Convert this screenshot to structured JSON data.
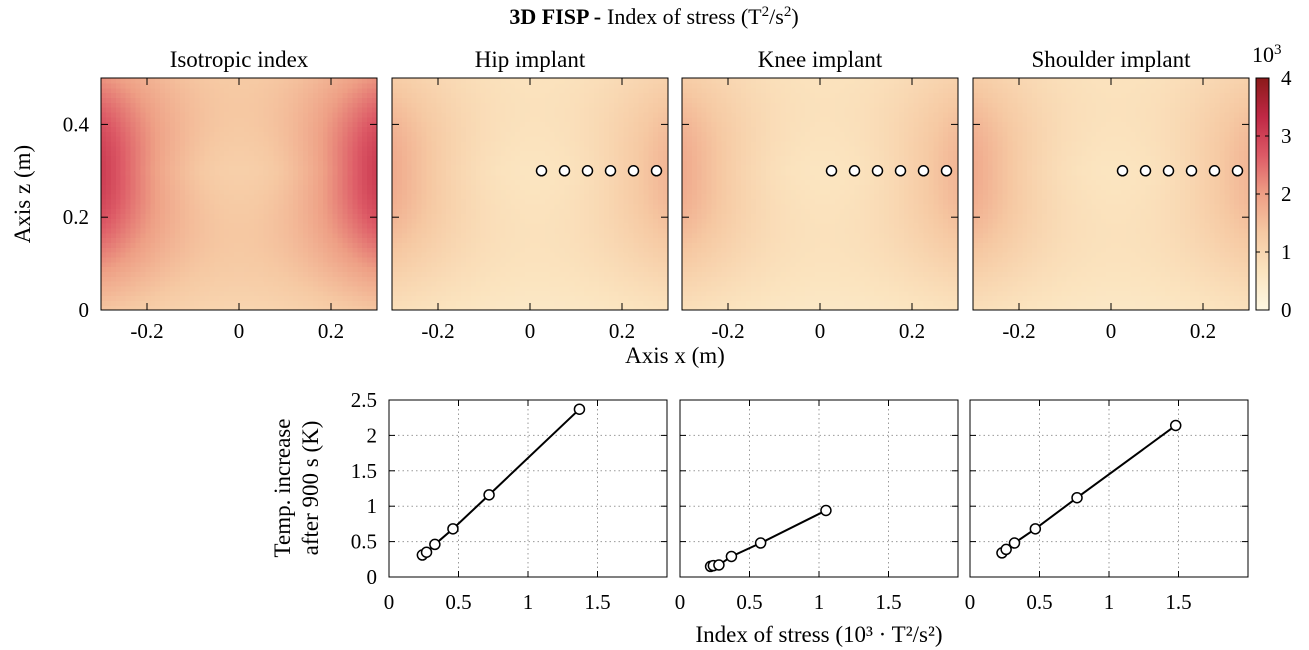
{
  "title": {
    "bold": "3D FISP -",
    "rest": "Index of stress (T",
    "sup1": "2",
    "mid": "/s",
    "sup2": "2",
    "end": ")"
  },
  "heatmap": {
    "panels": [
      {
        "title": "Isotropic index",
        "profile": "isotropic",
        "markers": false
      },
      {
        "title": "Hip implant",
        "profile": "implant",
        "markers": true
      },
      {
        "title": "Knee implant",
        "profile": "implant",
        "markers": true
      },
      {
        "title": "Shoulder implant",
        "profile": "implant",
        "markers": true
      }
    ],
    "xlim": [
      -0.3,
      0.3
    ],
    "ylim": [
      0,
      0.5
    ],
    "xticks": [
      -0.2,
      0,
      0.2
    ],
    "xtick_labels": [
      "-0.2",
      "0",
      "0.2"
    ],
    "yticks": [
      0,
      0.2,
      0.4
    ],
    "ytick_labels": [
      "0",
      "0.2",
      "0.4"
    ],
    "xlabel": "Axis x (m)",
    "ylabel": "Axis z (m)",
    "marker_x": [
      0.025,
      0.075,
      0.125,
      0.175,
      0.225,
      0.275
    ],
    "marker_z": 0.3,
    "colorbar": {
      "label_base": "10",
      "label_exp": "3",
      "ticks": [
        0,
        1,
        2,
        3,
        4
      ],
      "tick_labels": [
        "0",
        "1",
        "2",
        "3",
        "4"
      ],
      "range": [
        0,
        4
      ],
      "colors": [
        "#fdf7e3",
        "#fbe4bf",
        "#f6c9a3",
        "#ee9f85",
        "#dd5a66",
        "#c02845",
        "#8b1a1a"
      ]
    }
  },
  "chart_data": {
    "type": "line",
    "xlabel": "Index of stress (10³ · T²/s²)",
    "ylabel_line1": "Temp. increase",
    "ylabel_line2": "after 900 s (K)",
    "xlim": [
      0,
      2
    ],
    "ylim": [
      0,
      2.5
    ],
    "xticks": [
      0,
      0.5,
      1,
      1.5
    ],
    "xtick_labels": [
      "0",
      "0.5",
      "1",
      "1.5"
    ],
    "yticks": [
      0,
      0.5,
      1,
      1.5,
      2,
      2.5
    ],
    "ytick_labels": [
      "0",
      "0.5",
      "1",
      "1.5",
      "2",
      "2.5"
    ],
    "grid": true,
    "series": [
      {
        "x": [
          0.24,
          0.27,
          0.33,
          0.46,
          0.72,
          1.37
        ],
        "y": [
          0.31,
          0.35,
          0.46,
          0.68,
          1.16,
          2.37
        ]
      },
      {
        "x": [
          0.22,
          0.24,
          0.28,
          0.37,
          0.58,
          1.05
        ],
        "y": [
          0.15,
          0.16,
          0.17,
          0.29,
          0.48,
          0.94
        ]
      },
      {
        "x": [
          0.23,
          0.26,
          0.32,
          0.47,
          0.77,
          1.48
        ],
        "y": [
          0.34,
          0.39,
          0.48,
          0.68,
          1.12,
          2.14
        ]
      }
    ]
  }
}
